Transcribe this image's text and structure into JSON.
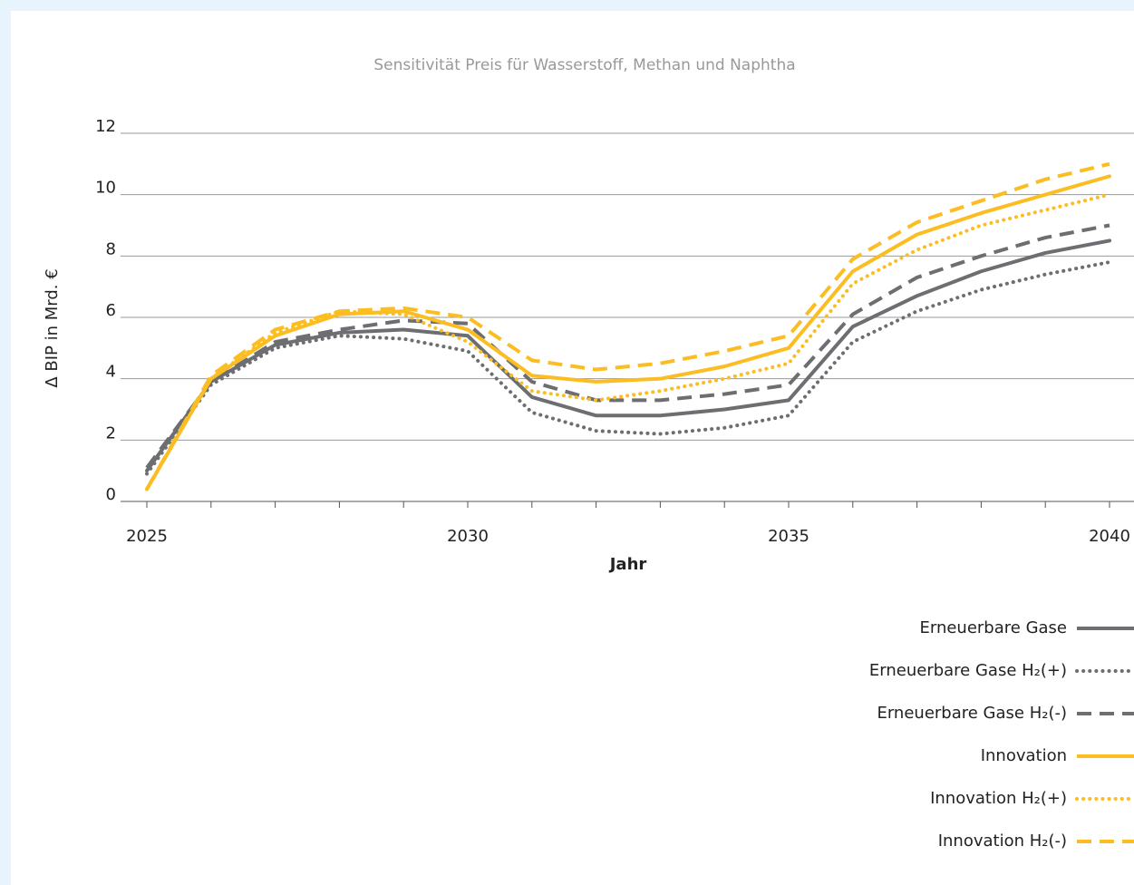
{
  "chart_data": {
    "type": "line",
    "title": "Sensitivität Preis für Wasserstoff, Methan und Naphtha",
    "x_label": "Jahr",
    "y_label": "Δ BIP in Mrd. €",
    "x": [
      2025,
      2026,
      2027,
      2028,
      2029,
      2030,
      2031,
      2032,
      2033,
      2034,
      2035,
      2036,
      2037,
      2038,
      2039,
      2040
    ],
    "xlim": [
      2025,
      2040
    ],
    "xticks": [
      2025,
      2030,
      2035,
      2040
    ],
    "ylim": [
      0,
      12
    ],
    "yticks": [
      0,
      2,
      4,
      6,
      8,
      10,
      12
    ],
    "grid": true,
    "legend": "bottom-right",
    "series": [
      {
        "name": "Erneuerbare Gase",
        "color": "#6d6e71",
        "linestyle": "solid",
        "values": [
          1.0,
          3.9,
          5.1,
          5.5,
          5.6,
          5.4,
          3.4,
          2.8,
          2.8,
          3.0,
          3.3,
          5.7,
          6.7,
          7.5,
          8.1,
          8.5
        ]
      },
      {
        "name": "Erneuerbare Gase H₂(+)",
        "color": "#6d6e71",
        "linestyle": "dotted",
        "values": [
          0.9,
          3.8,
          5.0,
          5.4,
          5.3,
          4.9,
          2.9,
          2.3,
          2.2,
          2.4,
          2.8,
          5.2,
          6.2,
          6.9,
          7.4,
          7.8
        ]
      },
      {
        "name": "Erneuerbare Gase H₂(-)",
        "color": "#6d6e71",
        "linestyle": "dashed",
        "values": [
          1.1,
          3.9,
          5.2,
          5.6,
          5.9,
          5.8,
          3.9,
          3.3,
          3.3,
          3.5,
          3.8,
          6.1,
          7.3,
          8.0,
          8.6,
          9.0
        ]
      },
      {
        "name": "Innovation",
        "color": "#fbbd22",
        "linestyle": "solid",
        "values": [
          0.4,
          4.0,
          5.4,
          6.1,
          6.2,
          5.6,
          4.1,
          3.9,
          4.0,
          4.4,
          5.0,
          7.5,
          8.7,
          9.4,
          10.0,
          10.6
        ]
      },
      {
        "name": "Innovation H₂(+)",
        "color": "#fbbd22",
        "linestyle": "dotted",
        "values": [
          0.4,
          4.0,
          5.5,
          6.2,
          6.1,
          5.2,
          3.6,
          3.3,
          3.6,
          4.0,
          4.5,
          7.1,
          8.2,
          9.0,
          9.5,
          10.0
        ]
      },
      {
        "name": "Innovation H₂(-)",
        "color": "#fbbd22",
        "linestyle": "dashed",
        "values": [
          0.4,
          4.1,
          5.6,
          6.2,
          6.3,
          6.0,
          4.6,
          4.3,
          4.5,
          4.9,
          5.4,
          7.9,
          9.1,
          9.8,
          10.5,
          11.0
        ]
      }
    ]
  }
}
